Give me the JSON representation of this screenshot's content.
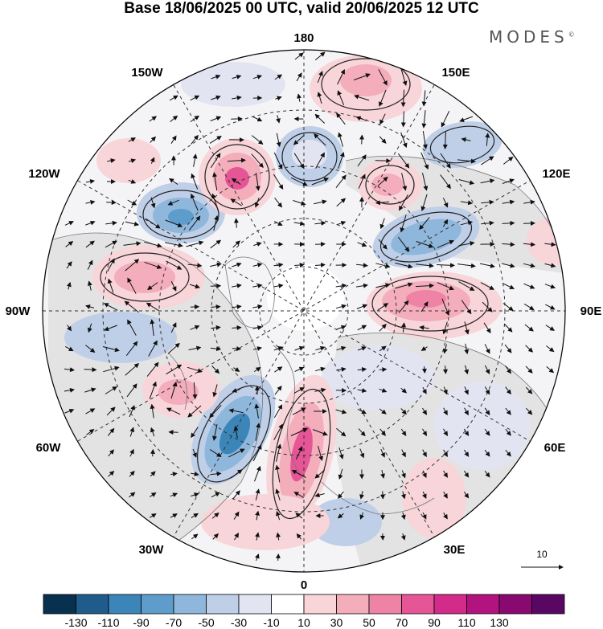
{
  "title": "Base 18/06/2025 00 UTC, valid 20/06/2025 12 UTC",
  "brand": "MODES",
  "brand_mark": "©",
  "longitude_labels": {
    "top": "180",
    "bottom": "0",
    "left": "90W",
    "right": "90E",
    "upper_left_1": "150W",
    "upper_left_2": "120W",
    "upper_right_1": "150E",
    "upper_right_2": "120E",
    "lower_left_1": "60W",
    "lower_left_2": "30W",
    "lower_right_1": "60E",
    "lower_right_2": "30E"
  },
  "reference_vector": {
    "label": "10"
  },
  "colorbar": {
    "colors": [
      "#08304f",
      "#1f5c8c",
      "#3b85b8",
      "#5e9ccb",
      "#8fb7dc",
      "#bfcfe8",
      "#e3e4f2",
      "#ffffff",
      "#f8d5d9",
      "#f3adbb",
      "#ee83a6",
      "#e65596",
      "#d32b8a",
      "#b2137f",
      "#88096f",
      "#5a0663"
    ],
    "tick_labels": [
      "-130",
      "-110",
      "-90",
      "-70",
      "-50",
      "-30",
      "-10",
      "10",
      "30",
      "50",
      "70",
      "90",
      "110",
      "130"
    ]
  },
  "colors": {
    "land_shade": "#e3e3e3",
    "coast": "#777777",
    "grid": "#333333",
    "vectors": "#111111"
  }
}
